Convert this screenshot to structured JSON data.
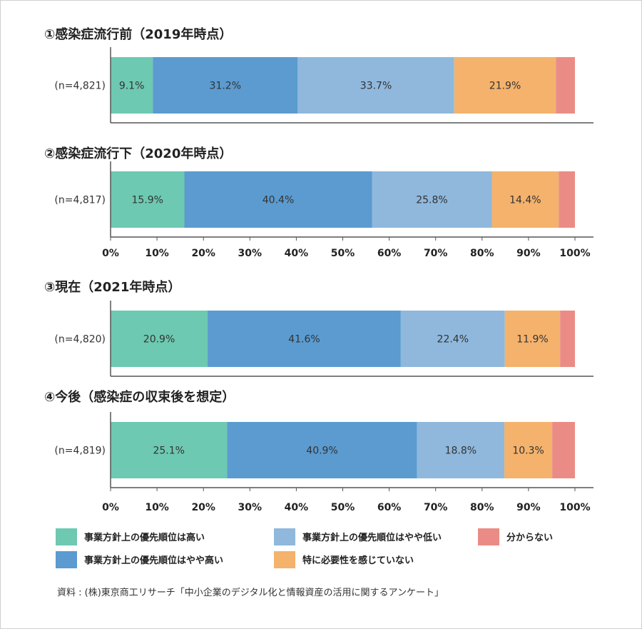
{
  "chart_data": {
    "type": "bar",
    "orientation": "horizontal",
    "stacked": true,
    "xlim": [
      0,
      100
    ],
    "x_ticks": [
      "0%",
      "10%",
      "20%",
      "30%",
      "40%",
      "50%",
      "60%",
      "70%",
      "80%",
      "90%",
      "100%"
    ],
    "series": [
      {
        "name": "事業方針上の優先順位は高い",
        "color": "#6dc9b1"
      },
      {
        "name": "事業方針上の優先順位はやや高い",
        "color": "#5b9bd0"
      },
      {
        "name": "事業方針上の優先順位はやや低い",
        "color": "#8fb8dc"
      },
      {
        "name": "特に必要性を感じていない",
        "color": "#f4b26c"
      },
      {
        "name": "分からない",
        "color": "#ea8c85"
      }
    ],
    "panels": [
      {
        "title": "①感染症流行前（2019年時点）",
        "n_label": "(n=4,821)",
        "values": [
          9.1,
          31.2,
          33.7,
          21.9,
          4.1
        ],
        "labels": [
          "9.1%",
          "31.2%",
          "33.7%",
          "21.9%",
          ""
        ],
        "show_ticks": false
      },
      {
        "title": "②感染症流行下（2020年時点）",
        "n_label": "(n=4,817)",
        "values": [
          15.9,
          40.4,
          25.8,
          14.4,
          3.5
        ],
        "labels": [
          "15.9%",
          "40.4%",
          "25.8%",
          "14.4%",
          ""
        ],
        "show_ticks": true
      },
      {
        "title": "③現在（2021年時点）",
        "n_label": "(n=4,820)",
        "values": [
          20.9,
          41.6,
          22.4,
          11.9,
          3.2
        ],
        "labels": [
          "20.9%",
          "41.6%",
          "22.4%",
          "11.9%",
          ""
        ],
        "show_ticks": false
      },
      {
        "title": "④今後（感染症の収束後を想定）",
        "n_label": "(n=4,819)",
        "values": [
          25.1,
          40.9,
          18.8,
          10.3,
          4.9
        ],
        "labels": [
          "25.1%",
          "40.9%",
          "18.8%",
          "10.3%",
          ""
        ],
        "show_ticks": true
      }
    ],
    "legend_position": "bottom"
  },
  "source": "資料 : (株)東京商工リサーチ「中小企業のデジタル化と情報資産の活用に関するアンケート」"
}
